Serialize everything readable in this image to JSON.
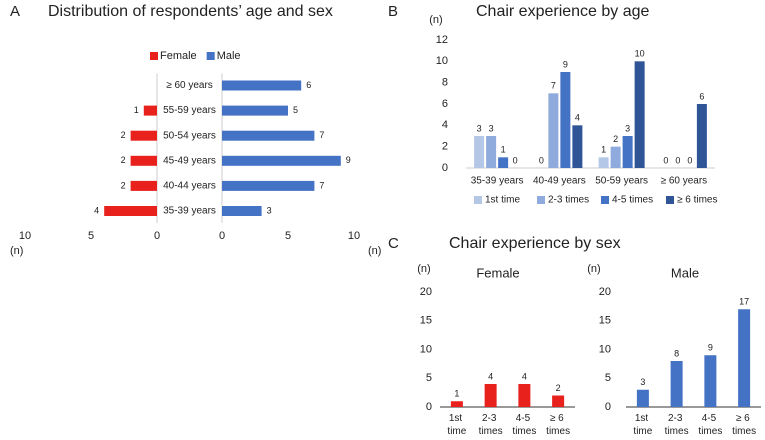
{
  "chart_data": [
    {
      "panel": "A",
      "type": "pyramid",
      "title": "Distribution of respondents’ age and sex",
      "categories": [
        "35-39 years",
        "40-44 years",
        "45-49 years",
        "50-54 years",
        "55-59 years",
        "≥ 60 years"
      ],
      "series": [
        {
          "name": "Female",
          "color": "#e8211d",
          "values": [
            4,
            2,
            2,
            2,
            1,
            null
          ]
        },
        {
          "name": "Male",
          "color": "#4472c4",
          "values": [
            3,
            7,
            9,
            7,
            5,
            6
          ]
        }
      ],
      "xlim": [
        0,
        10
      ],
      "xticks": [
        0,
        5,
        10
      ],
      "x_label": "(n)"
    },
    {
      "panel": "B",
      "type": "bar",
      "title": "Chair experience by age",
      "y_label": "(n)",
      "categories": [
        "35-39 years",
        "40-49 years",
        "50-59 years",
        "≥ 60 years"
      ],
      "series": [
        {
          "name": "1st time",
          "color": "#b4c7e7",
          "values": [
            3,
            0,
            1,
            0
          ]
        },
        {
          "name": "2-3 times",
          "color": "#8faadc",
          "values": [
            3,
            7,
            2,
            0
          ]
        },
        {
          "name": "4-5 times",
          "color": "#4472c4",
          "values": [
            1,
            9,
            3,
            0
          ]
        },
        {
          "name": "≥ 6 times",
          "color": "#2f5597",
          "values": [
            0,
            4,
            10,
            6
          ]
        }
      ],
      "ylim": [
        0,
        12
      ],
      "yticks": [
        0,
        2,
        4,
        6,
        8,
        10,
        12
      ],
      "legend": "bottom"
    },
    {
      "panel": "C",
      "type": "bar",
      "title": "Chair experience by sex",
      "subtitle": "Female",
      "y_label": "(n)",
      "categories": [
        "1st time",
        "2-3 times",
        "4-5 times",
        "≥ 6 times"
      ],
      "values": [
        1,
        4,
        4,
        2
      ],
      "color": "#e8211d",
      "ylim": [
        0,
        20
      ],
      "yticks": [
        0,
        5,
        10,
        15,
        20
      ]
    },
    {
      "type": "bar",
      "subtitle": "Male",
      "y_label": "(n)",
      "categories": [
        "1st time",
        "2-3 times",
        "4-5 times",
        "≥ 6 times"
      ],
      "values": [
        3,
        8,
        9,
        17
      ],
      "color": "#4472c4",
      "ylim": [
        0,
        20
      ],
      "yticks": [
        0,
        5,
        10,
        15,
        20
      ]
    }
  ]
}
